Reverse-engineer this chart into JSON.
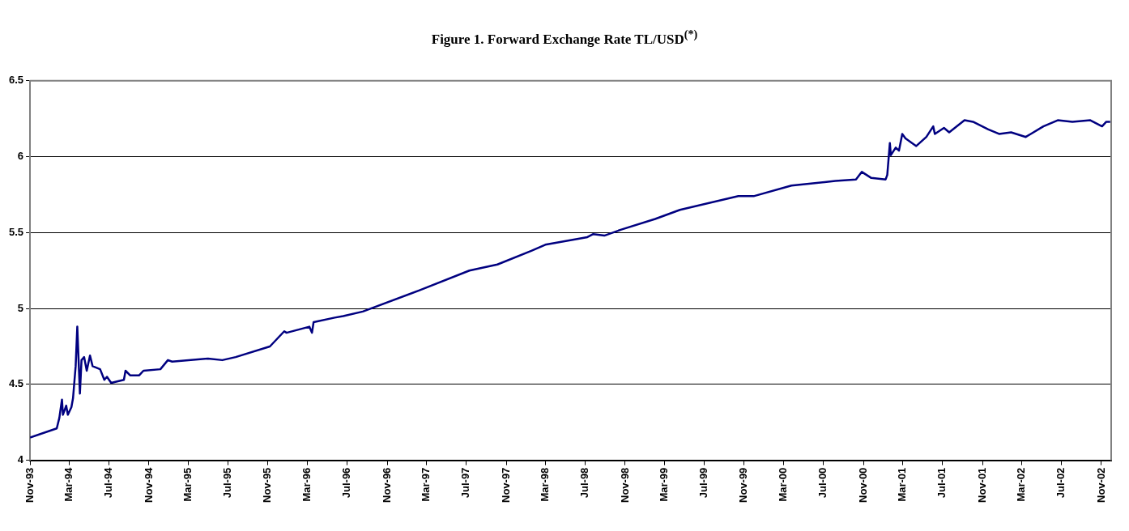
{
  "chart_data": {
    "type": "line",
    "title": "Figure 1. Forward Exchange Rate TL/USD$^{(*)}$",
    "x": [
      "1993-11-01",
      "1994-01-22",
      "1994-01-30",
      "1994-02-07",
      "1994-02-10",
      "1994-02-20",
      "1994-02-25",
      "1994-03-08",
      "1994-03-13",
      "1994-03-21",
      "1994-03-26",
      "1994-04-03",
      "1994-04-08",
      "1994-04-16",
      "1994-04-24",
      "1994-05-04",
      "1994-05-12",
      "1994-06-04",
      "1994-06-17",
      "1994-06-25",
      "1994-07-08",
      "1994-08-16",
      "1994-08-21",
      "1994-09-04",
      "1994-10-02",
      "1994-10-15",
      "1994-12-06",
      "1994-12-29",
      "1995-01-11",
      "1995-05-01",
      "1995-06-14",
      "1995-07-25",
      "1995-11-07",
      "1995-12-21",
      "1995-12-28",
      "1996-03-07",
      "1996-03-15",
      "1996-03-20",
      "1996-05-24",
      "1996-06-19",
      "1996-08-18",
      "1997-02-08",
      "1997-07-11",
      "1997-10-05",
      "1998-01-17",
      "1998-03-01",
      "1998-07-08",
      "1998-07-26",
      "1998-08-29",
      "1998-10-20",
      "1999-02-01",
      "1999-04-18",
      "1999-10-14",
      "1999-11-30",
      "2000-03-25",
      "2000-08-07",
      "2000-10-09",
      "2000-10-27",
      "2000-11-25",
      "2001-01-08",
      "2001-01-13",
      "2001-01-21",
      "2001-01-24",
      "2001-02-08",
      "2001-02-18",
      "2001-02-28",
      "2001-03-10",
      "2001-04-12",
      "2001-05-13",
      "2001-06-03",
      "2001-06-08",
      "2001-07-06",
      "2001-07-22",
      "2001-09-07",
      "2001-10-03",
      "2001-11-19",
      "2001-12-22",
      "2002-01-28",
      "2002-03-14",
      "2002-05-07",
      "2002-06-20",
      "2002-08-04",
      "2002-09-28",
      "2002-11-03",
      "2002-11-16",
      "2002-11-28"
    ],
    "series": [
      {
        "color": "#000080",
        "values": [
          4.15,
          4.21,
          4.28,
          4.4,
          4.3,
          4.36,
          4.3,
          4.35,
          4.41,
          4.62,
          4.88,
          4.44,
          4.66,
          4.68,
          4.59,
          4.69,
          4.62,
          4.6,
          4.53,
          4.55,
          4.51,
          4.53,
          4.59,
          4.56,
          4.56,
          4.59,
          4.6,
          4.66,
          4.65,
          4.67,
          4.66,
          4.68,
          4.75,
          4.85,
          4.84,
          4.88,
          4.84,
          4.91,
          4.94,
          4.95,
          4.98,
          5.12,
          5.25,
          5.29,
          5.38,
          5.42,
          5.47,
          5.49,
          5.48,
          5.52,
          5.59,
          5.65,
          5.74,
          5.74,
          5.81,
          5.84,
          5.85,
          5.9,
          5.86,
          5.85,
          5.88,
          6.09,
          6.01,
          6.06,
          6.04,
          6.15,
          6.12,
          6.07,
          6.13,
          6.2,
          6.15,
          6.19,
          6.16,
          6.24,
          6.23,
          6.18,
          6.15,
          6.16,
          6.13,
          6.2,
          6.24,
          6.23,
          6.24,
          6.2,
          6.23,
          6.23
        ]
      }
    ],
    "xlim": [
      "1993-11-01",
      "2002-12-01"
    ],
    "xticks": [
      {
        "value": "1993-11-01",
        "label": "Nov-93"
      },
      {
        "value": "1994-03-01",
        "label": "Mar-94"
      },
      {
        "value": "1994-07-01",
        "label": "Jul-94"
      },
      {
        "value": "1994-11-01",
        "label": "Nov-94"
      },
      {
        "value": "1995-03-01",
        "label": "Mar-95"
      },
      {
        "value": "1995-07-01",
        "label": "Jul-95"
      },
      {
        "value": "1995-11-01",
        "label": "Nov-95"
      },
      {
        "value": "1996-03-01",
        "label": "Mar-96"
      },
      {
        "value": "1996-07-01",
        "label": "Jul-96"
      },
      {
        "value": "1996-11-01",
        "label": "Nov-96"
      },
      {
        "value": "1997-03-01",
        "label": "Mar-97"
      },
      {
        "value": "1997-07-01",
        "label": "Jul-97"
      },
      {
        "value": "1997-11-01",
        "label": "Nov-97"
      },
      {
        "value": "1998-03-01",
        "label": "Mar-98"
      },
      {
        "value": "1998-07-01",
        "label": "Jul-98"
      },
      {
        "value": "1998-11-01",
        "label": "Nov-98"
      },
      {
        "value": "1999-03-01",
        "label": "Mar-99"
      },
      {
        "value": "1999-07-01",
        "label": "Jul-99"
      },
      {
        "value": "1999-11-01",
        "label": "Nov-99"
      },
      {
        "value": "2000-03-01",
        "label": "Mar-00"
      },
      {
        "value": "2000-07-01",
        "label": "Jul-00"
      },
      {
        "value": "2000-11-01",
        "label": "Nov-00"
      },
      {
        "value": "2001-03-01",
        "label": "Mar-01"
      },
      {
        "value": "2001-07-01",
        "label": "Jul-01"
      },
      {
        "value": "2001-11-01",
        "label": "Nov-01"
      },
      {
        "value": "2002-03-01",
        "label": "Mar-02"
      },
      {
        "value": "2002-07-01",
        "label": "Jul-02"
      },
      {
        "value": "2002-11-01",
        "label": "Nov-02"
      }
    ],
    "ylim": [
      4,
      6.5
    ],
    "yticks": [
      4,
      4.5,
      5,
      5.5,
      6,
      6.5
    ],
    "grid": "y",
    "legend": false,
    "marker": "none",
    "line_style": "solid"
  }
}
